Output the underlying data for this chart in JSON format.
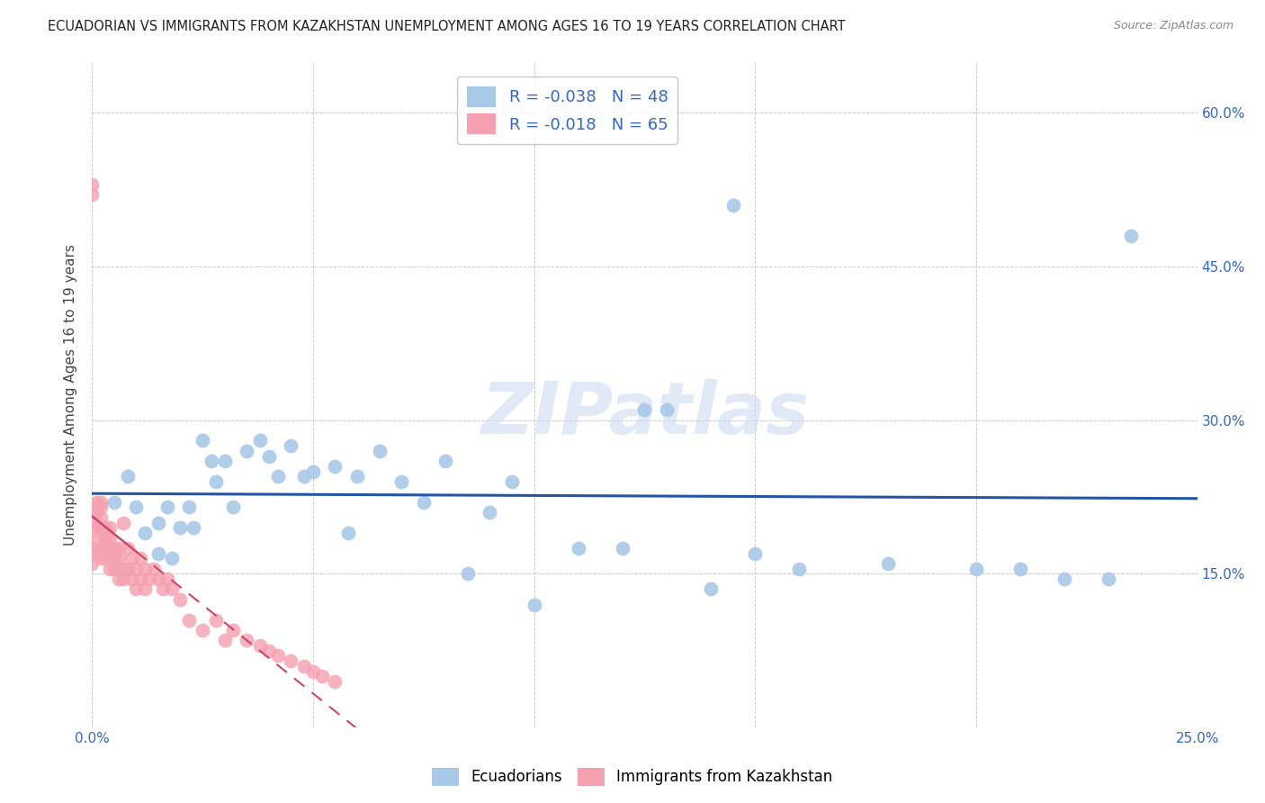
{
  "title": "ECUADORIAN VS IMMIGRANTS FROM KAZAKHSTAN UNEMPLOYMENT AMONG AGES 16 TO 19 YEARS CORRELATION CHART",
  "source": "Source: ZipAtlas.com",
  "ylabel": "Unemployment Among Ages 16 to 19 years",
  "xlim": [
    0.0,
    0.25
  ],
  "ylim": [
    0.0,
    0.65
  ],
  "xticks": [
    0.0,
    0.05,
    0.1,
    0.15,
    0.2,
    0.25
  ],
  "yticks": [
    0.0,
    0.15,
    0.3,
    0.45,
    0.6
  ],
  "ytick_labels": [
    "",
    "15.0%",
    "30.0%",
    "45.0%",
    "60.0%"
  ],
  "xtick_labels": [
    "0.0%",
    "",
    "",
    "",
    "",
    "25.0%"
  ],
  "blue_color": "#a8c8e8",
  "pink_color": "#f4a0b0",
  "blue_line_color": "#2255aa",
  "pink_line_color": "#cc4466",
  "legend_blue_label": "R = -0.038   N = 48",
  "legend_pink_label": "R = -0.018   N = 65",
  "watermark": "ZIPatlas",
  "ecuadorians_x": [
    0.005,
    0.008,
    0.01,
    0.012,
    0.015,
    0.015,
    0.017,
    0.018,
    0.02,
    0.022,
    0.023,
    0.025,
    0.027,
    0.028,
    0.03,
    0.032,
    0.035,
    0.038,
    0.04,
    0.042,
    0.045,
    0.048,
    0.05,
    0.055,
    0.058,
    0.06,
    0.065,
    0.07,
    0.075,
    0.08,
    0.085,
    0.09,
    0.095,
    0.1,
    0.11,
    0.12,
    0.125,
    0.13,
    0.14,
    0.145,
    0.15,
    0.16,
    0.18,
    0.2,
    0.21,
    0.22,
    0.23,
    0.235
  ],
  "ecuadorians_y": [
    0.22,
    0.245,
    0.215,
    0.19,
    0.2,
    0.17,
    0.215,
    0.165,
    0.195,
    0.215,
    0.195,
    0.28,
    0.26,
    0.24,
    0.26,
    0.215,
    0.27,
    0.28,
    0.265,
    0.245,
    0.275,
    0.245,
    0.25,
    0.255,
    0.19,
    0.245,
    0.27,
    0.24,
    0.22,
    0.26,
    0.15,
    0.21,
    0.24,
    0.12,
    0.175,
    0.175,
    0.31,
    0.31,
    0.135,
    0.51,
    0.17,
    0.155,
    0.16,
    0.155,
    0.155,
    0.145,
    0.145,
    0.48
  ],
  "kazakhstan_x": [
    0.0,
    0.0,
    0.0,
    0.0,
    0.0,
    0.001,
    0.001,
    0.001,
    0.001,
    0.001,
    0.001,
    0.002,
    0.002,
    0.002,
    0.002,
    0.002,
    0.002,
    0.003,
    0.003,
    0.003,
    0.003,
    0.004,
    0.004,
    0.004,
    0.004,
    0.005,
    0.005,
    0.005,
    0.006,
    0.006,
    0.006,
    0.007,
    0.007,
    0.007,
    0.008,
    0.008,
    0.009,
    0.009,
    0.01,
    0.01,
    0.011,
    0.011,
    0.012,
    0.012,
    0.013,
    0.014,
    0.015,
    0.016,
    0.017,
    0.018,
    0.02,
    0.022,
    0.025,
    0.028,
    0.03,
    0.032,
    0.035,
    0.038,
    0.04,
    0.042,
    0.045,
    0.048,
    0.05,
    0.052,
    0.055
  ],
  "kazakhstan_y": [
    0.52,
    0.53,
    0.175,
    0.17,
    0.16,
    0.22,
    0.215,
    0.21,
    0.2,
    0.195,
    0.185,
    0.22,
    0.215,
    0.205,
    0.195,
    0.175,
    0.165,
    0.195,
    0.185,
    0.175,
    0.165,
    0.195,
    0.185,
    0.175,
    0.155,
    0.175,
    0.165,
    0.155,
    0.175,
    0.165,
    0.145,
    0.2,
    0.155,
    0.145,
    0.175,
    0.155,
    0.165,
    0.145,
    0.155,
    0.135,
    0.165,
    0.145,
    0.155,
    0.135,
    0.145,
    0.155,
    0.145,
    0.135,
    0.145,
    0.135,
    0.125,
    0.105,
    0.095,
    0.105,
    0.085,
    0.095,
    0.085,
    0.08,
    0.075,
    0.07,
    0.065,
    0.06,
    0.055,
    0.05,
    0.045
  ]
}
